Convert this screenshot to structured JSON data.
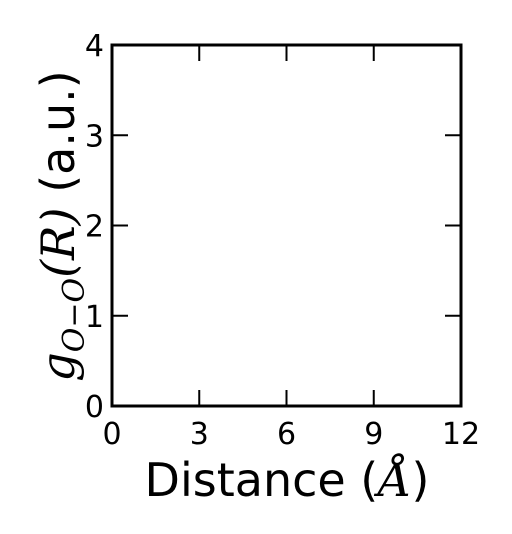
{
  "chart_data": {
    "type": "line",
    "title": "",
    "series": [],
    "x_ticks": [
      "0",
      "3",
      "6",
      "9",
      "12"
    ],
    "y_ticks": [
      "0",
      "1",
      "2",
      "3",
      "4"
    ],
    "xlim": [
      0,
      12
    ],
    "ylim": [
      0,
      4
    ],
    "xlabel": {
      "prefix": "Distance (",
      "unit": "Å",
      "suffix": ")"
    },
    "ylabel": {
      "g": "g",
      "sub": "O−O",
      "arg": "(R)",
      "units": " (a.u.)"
    },
    "grid": false
  }
}
